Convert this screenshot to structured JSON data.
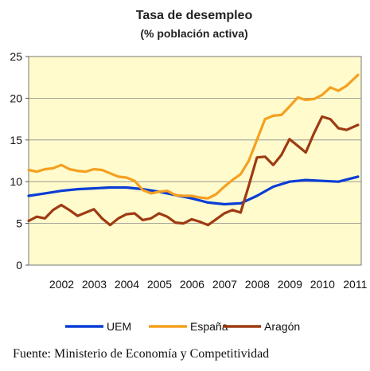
{
  "chart_data": {
    "type": "line",
    "title": "Tasa de desempleo",
    "subtitle": "(% población activa)",
    "xlabel": "",
    "ylabel": "",
    "xlim": [
      2001.5,
      2011.7
    ],
    "ylim": [
      0,
      25
    ],
    "yticks": [
      0,
      5,
      10,
      15,
      20,
      25
    ],
    "xtick_labels": [
      "2002",
      "2003",
      "2004",
      "2005",
      "2006",
      "2007",
      "2008",
      "2009",
      "2010",
      "2011"
    ],
    "xtick_positions": [
      2002.0,
      2003.0,
      2004.0,
      2005.0,
      2006.0,
      2007.0,
      2008.0,
      2009.0,
      2010.0,
      2011.0
    ],
    "grid": "horizontal",
    "plot_background": "#FFFBCC",
    "legend_position": "bottom",
    "series": [
      {
        "name": "UEM",
        "color": "#0A3DD6",
        "x": [
          2001.5,
          2002.0,
          2002.5,
          2003.0,
          2003.5,
          2004.0,
          2004.5,
          2005.0,
          2005.5,
          2006.0,
          2006.5,
          2007.0,
          2007.5,
          2008.0,
          2008.5,
          2009.0,
          2009.5,
          2010.0,
          2010.5,
          2011.0,
          2011.6
        ],
        "y": [
          8.3,
          8.6,
          8.9,
          9.1,
          9.2,
          9.3,
          9.3,
          9.1,
          8.8,
          8.4,
          8.0,
          7.5,
          7.3,
          7.4,
          8.3,
          9.4,
          10.0,
          10.2,
          10.1,
          10.0,
          10.6
        ]
      },
      {
        "name": "España",
        "color": "#F5A020",
        "x": [
          2001.5,
          2001.75,
          2002.0,
          2002.25,
          2002.5,
          2002.75,
          2003.0,
          2003.25,
          2003.5,
          2003.75,
          2004.0,
          2004.25,
          2004.5,
          2004.75,
          2005.0,
          2005.25,
          2005.5,
          2005.75,
          2006.0,
          2006.25,
          2006.5,
          2006.75,
          2007.0,
          2007.25,
          2007.5,
          2007.75,
          2008.0,
          2008.25,
          2008.5,
          2008.75,
          2009.0,
          2009.25,
          2009.5,
          2009.75,
          2010.0,
          2010.25,
          2010.5,
          2010.75,
          2011.0,
          2011.25,
          2011.6
        ],
        "y": [
          11.4,
          11.2,
          11.5,
          11.6,
          12.0,
          11.5,
          11.3,
          11.2,
          11.5,
          11.4,
          11.0,
          10.6,
          10.5,
          10.1,
          9.0,
          8.6,
          8.8,
          8.9,
          8.4,
          8.3,
          8.3,
          8.1,
          8.0,
          8.5,
          9.4,
          10.2,
          10.9,
          12.5,
          15.0,
          17.5,
          17.9,
          18.0,
          19.0,
          20.1,
          19.8,
          19.9,
          20.4,
          21.3,
          20.9,
          21.5,
          22.8
        ]
      },
      {
        "name": "Aragón",
        "color": "#9E3A12",
        "x": [
          2001.5,
          2001.75,
          2002.0,
          2002.25,
          2002.5,
          2002.75,
          2003.0,
          2003.25,
          2003.5,
          2003.75,
          2004.0,
          2004.25,
          2004.5,
          2004.75,
          2005.0,
          2005.25,
          2005.5,
          2005.75,
          2006.0,
          2006.25,
          2006.5,
          2006.75,
          2007.0,
          2007.25,
          2007.5,
          2007.75,
          2008.0,
          2008.25,
          2008.5,
          2008.75,
          2009.0,
          2009.25,
          2009.5,
          2009.75,
          2010.0,
          2010.25,
          2010.5,
          2010.75,
          2011.0,
          2011.25,
          2011.6
        ],
        "y": [
          5.3,
          5.8,
          5.6,
          6.6,
          7.2,
          6.6,
          5.9,
          6.3,
          6.7,
          5.6,
          4.8,
          5.6,
          6.1,
          6.2,
          5.4,
          5.6,
          6.2,
          5.8,
          5.1,
          5.0,
          5.5,
          5.2,
          4.8,
          5.5,
          6.2,
          6.6,
          6.3,
          9.5,
          12.9,
          13.0,
          12.0,
          13.2,
          15.1,
          14.3,
          13.5,
          15.8,
          17.8,
          17.5,
          16.4,
          16.2,
          16.8
        ]
      }
    ]
  },
  "source_text": "Fuente: Ministerio de Economía y Competitividad"
}
